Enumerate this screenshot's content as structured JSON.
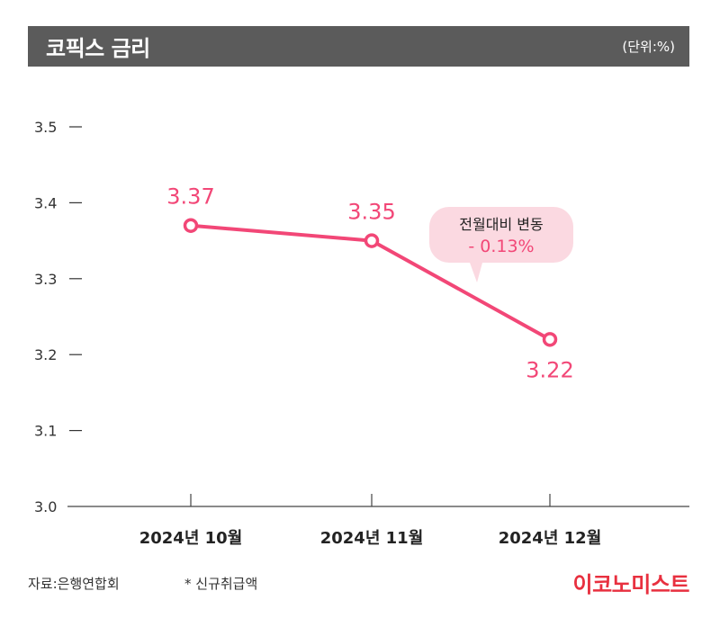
{
  "header": {
    "title": "코픽스 금리",
    "unit": "(단위:%)"
  },
  "chart_data": {
    "type": "line",
    "title": "코픽스 금리",
    "unit": "(단위:%)",
    "categories": [
      "2024년 10월",
      "2024년 11월",
      "2024년 12월"
    ],
    "series": [
      {
        "values": [
          3.37,
          3.35,
          3.22
        ],
        "labels": [
          "3.37",
          "3.35",
          "3.22"
        ]
      }
    ],
    "ylim": [
      3.0,
      3.5
    ],
    "yticks": [
      "3.5",
      "3.4",
      "3.3",
      "3.2",
      "3.1",
      "3.0"
    ],
    "grid": false,
    "color": "#f24777",
    "annotation": {
      "title": "전월대비 변동",
      "value": "- 0.13%"
    }
  },
  "footer": {
    "source": "자료:은행연합회",
    "note": "* 신규취급액",
    "brand": "이코노미스트"
  },
  "colors": {
    "accent": "#f24777",
    "bubble": "#fbd9e1",
    "header_bg": "#5b5b5b",
    "brand": "#e8303f"
  }
}
